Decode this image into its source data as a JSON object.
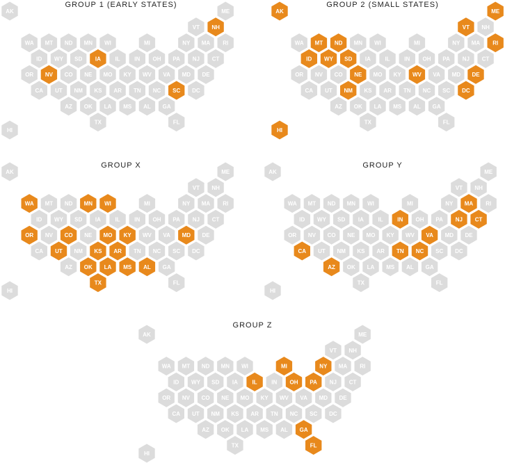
{
  "colors": {
    "highlight": "#e8891c",
    "base": "#dcdcdc",
    "label": "#ffffff",
    "title": "#222222"
  },
  "maps": [
    {
      "title": "GROUP 1 (EARLY STATES)",
      "highlighted": [
        "NH",
        "IA",
        "NV",
        "SC"
      ]
    },
    {
      "title": "GROUP 2 (SMALL STATES)",
      "highlighted": [
        "AK",
        "ME",
        "VT",
        "RI",
        "MT",
        "ND",
        "ID",
        "WY",
        "SD",
        "NE",
        "NM",
        "WV",
        "DE",
        "DC",
        "HI"
      ]
    },
    {
      "title": "GROUP X",
      "highlighted": [
        "WA",
        "MN",
        "WI",
        "OR",
        "CO",
        "MO",
        "KY",
        "MD",
        "UT",
        "KS",
        "AR",
        "OK",
        "LA",
        "MS",
        "AL",
        "TX"
      ]
    },
    {
      "title": "GROUP Y",
      "highlighted": [
        "MA",
        "IN",
        "NJ",
        "CT",
        "VA",
        "CA",
        "TN",
        "NC",
        "AZ"
      ]
    },
    {
      "title": "GROUP Z",
      "highlighted": [
        "MI",
        "NY",
        "IL",
        "OH",
        "PA",
        "GA",
        "FL"
      ]
    }
  ],
  "states": [
    {
      "abbr": "AK",
      "col": 0,
      "row": 0
    },
    {
      "abbr": "ME",
      "col": 11,
      "row": 0
    },
    {
      "abbr": "NH",
      "col": 10.5,
      "row": 1
    },
    {
      "abbr": "VT",
      "col": 9.5,
      "row": 1
    },
    {
      "abbr": "WA",
      "col": 1,
      "row": 2
    },
    {
      "abbr": "MT",
      "col": 2,
      "row": 2
    },
    {
      "abbr": "ND",
      "col": 3,
      "row": 2
    },
    {
      "abbr": "MN",
      "col": 4,
      "row": 2
    },
    {
      "abbr": "WI",
      "col": 5,
      "row": 2
    },
    {
      "abbr": "MI",
      "col": 7,
      "row": 2
    },
    {
      "abbr": "NY",
      "col": 9,
      "row": 2
    },
    {
      "abbr": "MA",
      "col": 10,
      "row": 2
    },
    {
      "abbr": "RI",
      "col": 11,
      "row": 2
    },
    {
      "abbr": "ID",
      "col": 1.5,
      "row": 3
    },
    {
      "abbr": "WY",
      "col": 2.5,
      "row": 3
    },
    {
      "abbr": "SD",
      "col": 3.5,
      "row": 3
    },
    {
      "abbr": "IA",
      "col": 4.5,
      "row": 3
    },
    {
      "abbr": "IL",
      "col": 5.5,
      "row": 3
    },
    {
      "abbr": "IN",
      "col": 6.5,
      "row": 3
    },
    {
      "abbr": "OH",
      "col": 7.5,
      "row": 3
    },
    {
      "abbr": "PA",
      "col": 8.5,
      "row": 3
    },
    {
      "abbr": "NJ",
      "col": 9.5,
      "row": 3
    },
    {
      "abbr": "CT",
      "col": 10.5,
      "row": 3
    },
    {
      "abbr": "OR",
      "col": 1,
      "row": 4
    },
    {
      "abbr": "NV",
      "col": 2,
      "row": 4
    },
    {
      "abbr": "CO",
      "col": 3,
      "row": 4
    },
    {
      "abbr": "NE",
      "col": 4,
      "row": 4
    },
    {
      "abbr": "MO",
      "col": 5,
      "row": 4
    },
    {
      "abbr": "KY",
      "col": 6,
      "row": 4
    },
    {
      "abbr": "WV",
      "col": 7,
      "row": 4
    },
    {
      "abbr": "VA",
      "col": 8,
      "row": 4
    },
    {
      "abbr": "MD",
      "col": 9,
      "row": 4
    },
    {
      "abbr": "DE",
      "col": 10,
      "row": 4
    },
    {
      "abbr": "CA",
      "col": 1.5,
      "row": 5
    },
    {
      "abbr": "UT",
      "col": 2.5,
      "row": 5
    },
    {
      "abbr": "NM",
      "col": 3.5,
      "row": 5
    },
    {
      "abbr": "KS",
      "col": 4.5,
      "row": 5
    },
    {
      "abbr": "AR",
      "col": 5.5,
      "row": 5
    },
    {
      "abbr": "TN",
      "col": 6.5,
      "row": 5
    },
    {
      "abbr": "NC",
      "col": 7.5,
      "row": 5
    },
    {
      "abbr": "SC",
      "col": 8.5,
      "row": 5
    },
    {
      "abbr": "DC",
      "col": 9.5,
      "row": 5
    },
    {
      "abbr": "AZ",
      "col": 3,
      "row": 6
    },
    {
      "abbr": "OK",
      "col": 4,
      "row": 6
    },
    {
      "abbr": "LA",
      "col": 5,
      "row": 6
    },
    {
      "abbr": "MS",
      "col": 6,
      "row": 6
    },
    {
      "abbr": "AL",
      "col": 7,
      "row": 6
    },
    {
      "abbr": "GA",
      "col": 8,
      "row": 6
    },
    {
      "abbr": "TX",
      "col": 4.5,
      "row": 7
    },
    {
      "abbr": "FL",
      "col": 8.5,
      "row": 7
    },
    {
      "abbr": "HI",
      "col": 0,
      "row": 7.5
    }
  ]
}
